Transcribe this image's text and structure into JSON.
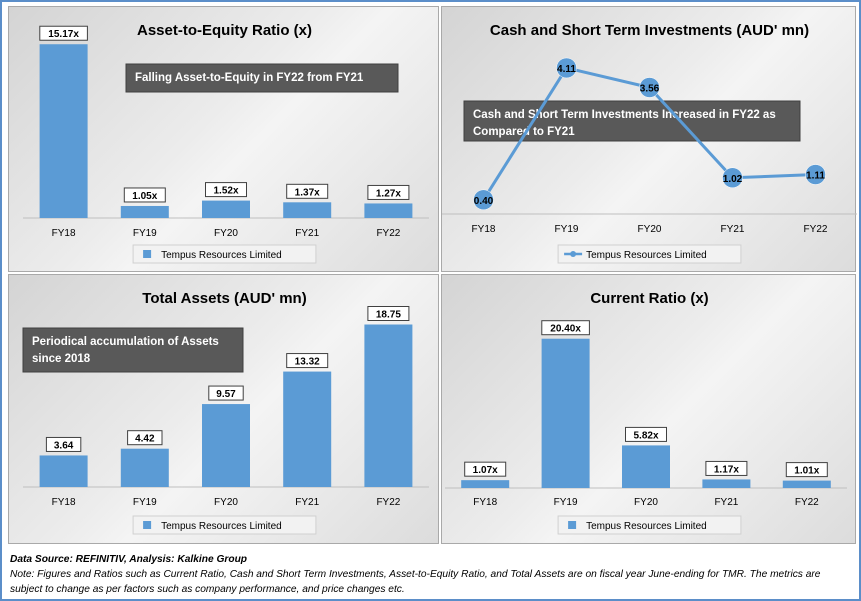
{
  "chart_data": [
    {
      "type": "bar",
      "title": "Asset-to-Equity Ratio (x)",
      "categories": [
        "FY18",
        "FY19",
        "FY20",
        "FY21",
        "FY22"
      ],
      "series": [
        {
          "name": "Tempus Resources Limited",
          "values": [
            15.17,
            1.05,
            1.52,
            1.37,
            1.27
          ]
        }
      ],
      "data_labels": [
        "15.17x",
        "1.05x",
        "1.52x",
        "1.37x",
        "1.27x"
      ],
      "annotation": [
        "Falling Asset-to-Equity in FY22 from FY21"
      ],
      "ylim": [
        0,
        16.5
      ],
      "legend": "bottom",
      "color": "#5b9bd5"
    },
    {
      "type": "line",
      "title": "Cash and Short Term Investments (AUD' mn)",
      "categories": [
        "FY18",
        "FY19",
        "FY20",
        "FY21",
        "FY22"
      ],
      "series": [
        {
          "name": "Tempus Resources Limited",
          "values": [
            0.4,
            4.11,
            3.56,
            1.02,
            1.11
          ]
        }
      ],
      "data_labels": [
        "0.40",
        "4.11",
        "3.56",
        "1.02",
        "1.11"
      ],
      "annotation": [
        "Cash and Short Term Investments Increased in FY22 as",
        "Compared to FY21"
      ],
      "ylim": [
        0,
        4.7
      ],
      "legend": "bottom",
      "color": "#5b9bd5"
    },
    {
      "type": "bar",
      "title": "Total Assets (AUD' mn)",
      "categories": [
        "FY18",
        "FY19",
        "FY20",
        "FY21",
        "FY22"
      ],
      "series": [
        {
          "name": "Tempus Resources Limited",
          "values": [
            3.64,
            4.42,
            9.57,
            13.32,
            18.75
          ]
        }
      ],
      "data_labels": [
        "3.64",
        "4.42",
        "9.57",
        "13.32",
        "18.75"
      ],
      "annotation": [
        "Periodical accumulation of Assets",
        "since 2018"
      ],
      "ylim": [
        0,
        21
      ],
      "legend": "bottom",
      "color": "#5b9bd5"
    },
    {
      "type": "bar",
      "title": "Current Ratio (x)",
      "categories": [
        "FY18",
        "FY19",
        "FY20",
        "FY21",
        "FY22"
      ],
      "series": [
        {
          "name": "Tempus Resources Limited",
          "values": [
            1.07,
            20.4,
            5.82,
            1.17,
            1.01
          ]
        }
      ],
      "data_labels": [
        "1.07x",
        "20.40x",
        "5.82x",
        "1.17x",
        "1.01x"
      ],
      "annotation": [],
      "ylim": [
        0,
        22
      ],
      "legend": "bottom",
      "color": "#5b9bd5"
    }
  ],
  "footer": {
    "source": "Data Source: REFINITIV, Analysis: Kalkine Group",
    "note": "Note: Figures and Ratios such as Current Ratio, Cash and Short Term Investments, Asset-to-Equity Ratio, and Total Assets are on fiscal year June-ending for TMR. The metrics are subject to change as per factors such as company performance, and price changes etc."
  }
}
